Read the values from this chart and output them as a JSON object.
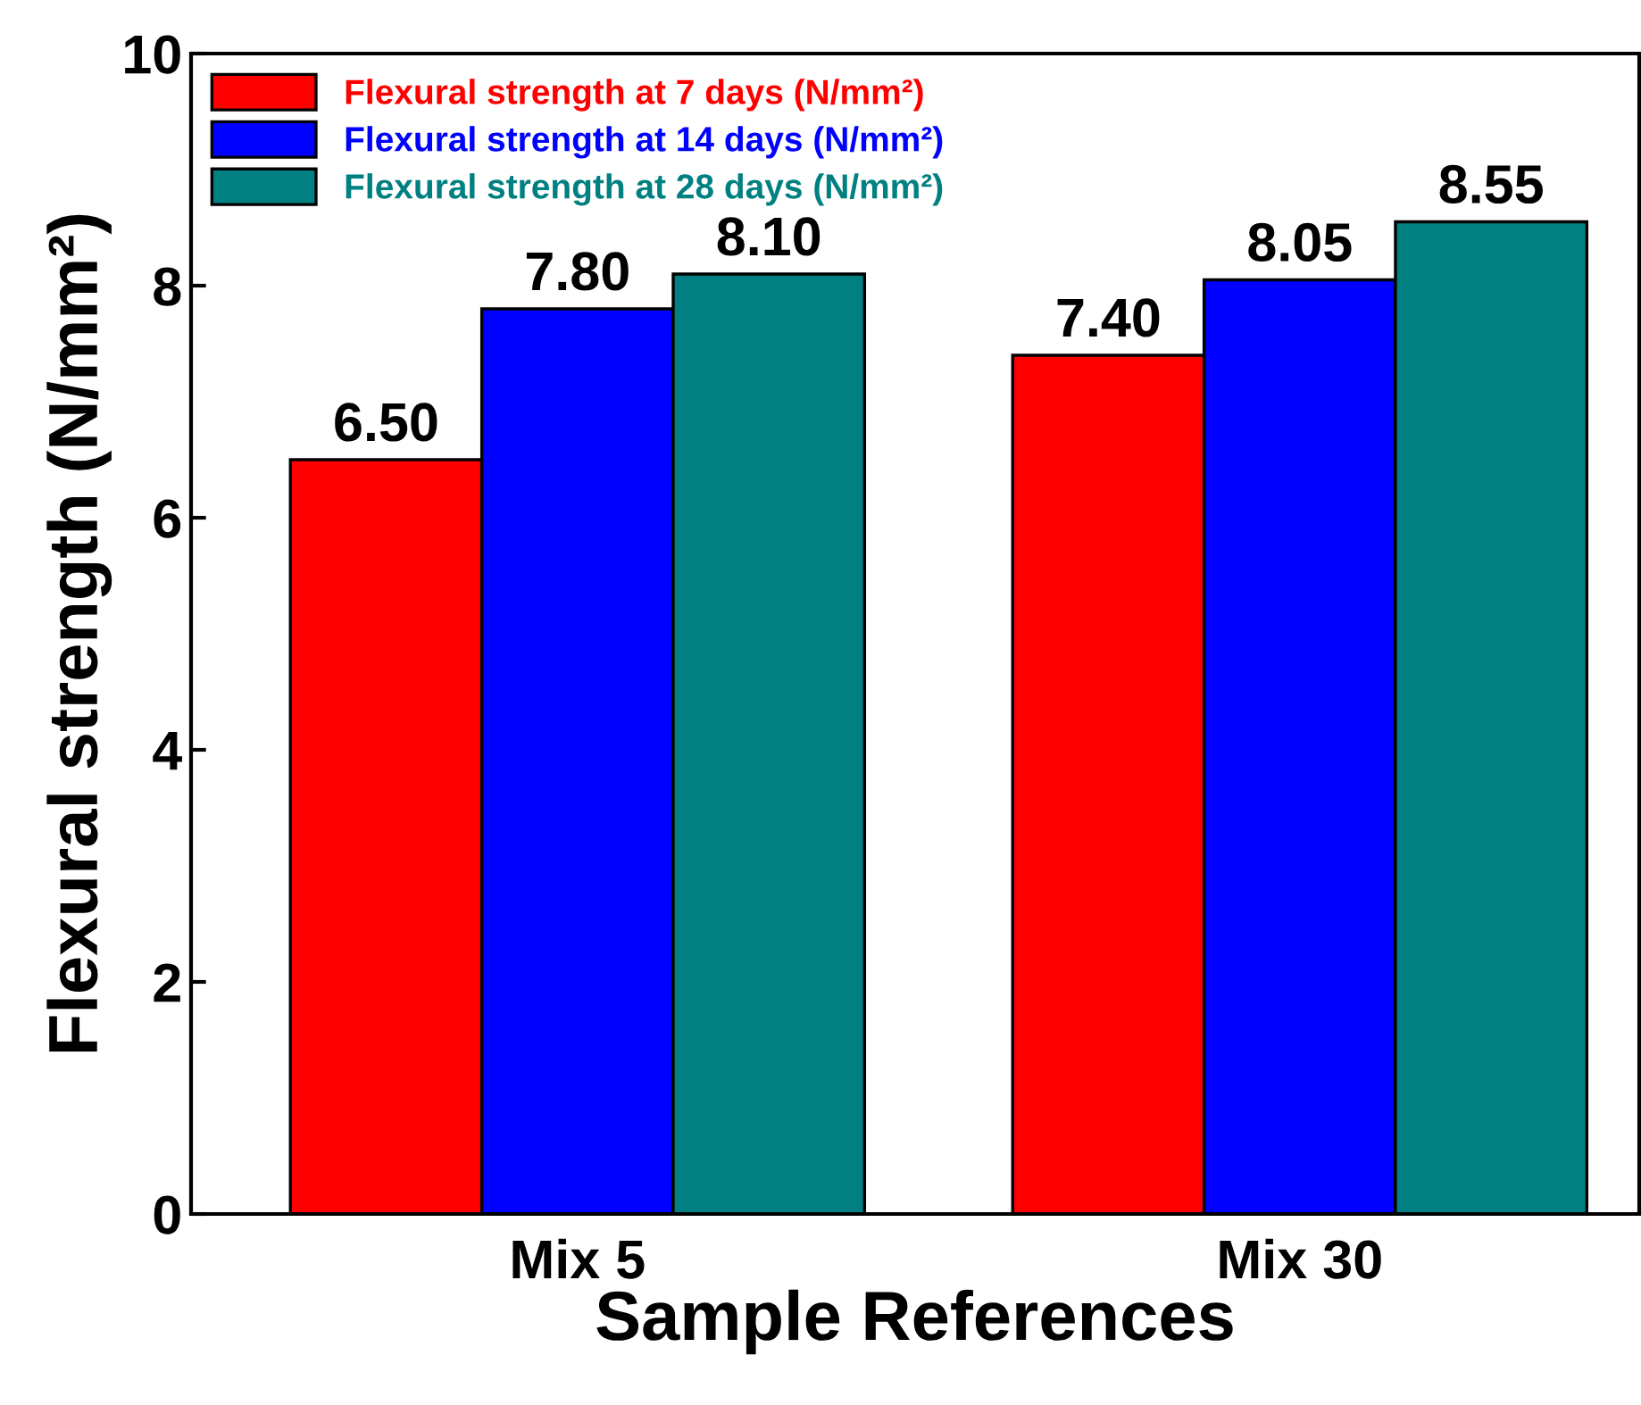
{
  "chart_data": {
    "type": "bar",
    "xlabel": "Sample References",
    "ylabel": "Flexural strength (N/mm²)",
    "categories": [
      "Mix 5",
      "Mix 30"
    ],
    "series": [
      {
        "name": "Flexural strength at 7 days (N/mm²)",
        "color": "#ff0000",
        "values": [
          6.5,
          7.4
        ],
        "value_labels": [
          "6.50",
          "7.40"
        ]
      },
      {
        "name": "Flexural strength at 14 days (N/mm²)",
        "color": "#0000ff",
        "values": [
          7.8,
          8.05
        ],
        "value_labels": [
          "7.80",
          "8.05"
        ]
      },
      {
        "name": "Flexural strength at 28 days (N/mm²)",
        "color": "#008080",
        "values": [
          8.1,
          8.55
        ],
        "value_labels": [
          "8.10",
          "8.55"
        ]
      }
    ],
    "ylim": [
      0,
      10
    ],
    "yticks": [
      0,
      2,
      4,
      6,
      8,
      10
    ],
    "grid": false,
    "legend": "top left"
  }
}
